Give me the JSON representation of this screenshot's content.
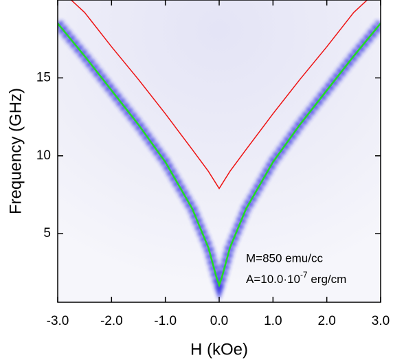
{
  "chart_data": {
    "type": "line",
    "xlabel": "H (kOe)",
    "ylabel": "Frequency (GHz)",
    "xlim": [
      -3,
      3
    ],
    "ylim": [
      0.6,
      20
    ],
    "xticks": [
      {
        "value": -3,
        "label": "-3.0"
      },
      {
        "value": -2,
        "label": "-2.0"
      },
      {
        "value": -1,
        "label": "-1.0"
      },
      {
        "value": 0,
        "label": "0.0"
      },
      {
        "value": 1,
        "label": "1.0"
      },
      {
        "value": 2,
        "label": "2.0"
      },
      {
        "value": 3,
        "label": "3.0"
      }
    ],
    "yticks": [
      5,
      10,
      15
    ],
    "series": [
      {
        "color": "#22dd22",
        "x": [
          -3,
          -2.5,
          -2,
          -1.5,
          -1,
          -0.5,
          -0.2,
          -0.05,
          0,
          0.05,
          0.2,
          0.5,
          1,
          1.5,
          2,
          2.5,
          3
        ],
        "values": [
          18.5,
          16.4,
          14.2,
          12.0,
          9.6,
          6.6,
          4.1,
          2.2,
          1.7,
          2.2,
          4.1,
          6.6,
          9.6,
          12.0,
          14.2,
          16.4,
          18.5
        ]
      },
      {
        "color": "#ee1111",
        "x": [
          -2.75,
          -2.5,
          -2,
          -1.5,
          -1,
          -0.5,
          -0.2,
          0,
          0.2,
          0.5,
          1,
          1.5,
          2,
          2.5,
          2.75
        ],
        "values": [
          20,
          19.2,
          17,
          14.9,
          12.7,
          10.4,
          9.0,
          7.9,
          9.0,
          10.4,
          12.7,
          14.9,
          17,
          19.2,
          20
        ]
      }
    ],
    "annotations": [
      {
        "text": "M=850 emu/cc"
      },
      {
        "text": "A=10.0·10",
        "superscript": "-7",
        "suffix": " erg/cm"
      }
    ]
  }
}
